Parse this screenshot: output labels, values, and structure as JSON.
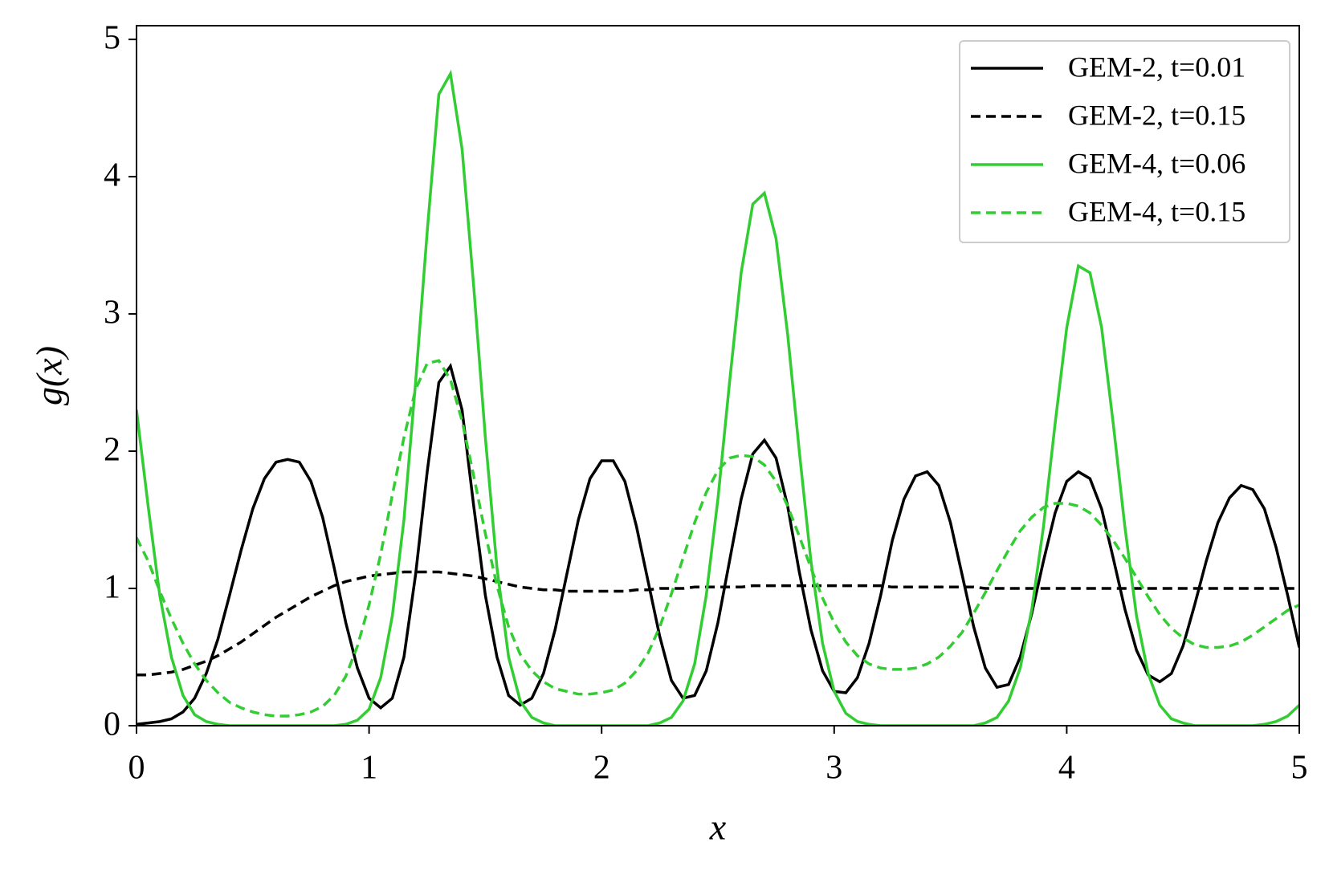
{
  "chart_data": {
    "type": "line",
    "xlabel": "x",
    "ylabel": "g(x)",
    "xlim": [
      0,
      5
    ],
    "ylim": [
      0,
      5.1
    ],
    "xticks": [
      0,
      1,
      2,
      3,
      4,
      5
    ],
    "yticks": [
      0,
      1,
      2,
      3,
      4,
      5
    ],
    "legend": "upper right",
    "x": [
      0,
      0.05,
      0.1,
      0.15,
      0.2,
      0.25,
      0.3,
      0.35,
      0.4,
      0.45,
      0.5,
      0.55,
      0.6,
      0.65,
      0.7,
      0.75,
      0.8,
      0.85,
      0.9,
      0.95,
      1,
      1.05,
      1.1,
      1.15,
      1.2,
      1.25,
      1.3,
      1.35,
      1.4,
      1.45,
      1.5,
      1.55,
      1.6,
      1.65,
      1.7,
      1.75,
      1.8,
      1.85,
      1.9,
      1.95,
      2,
      2.05,
      2.1,
      2.15,
      2.2,
      2.25,
      2.3,
      2.35,
      2.4,
      2.45,
      2.5,
      2.55,
      2.6,
      2.65,
      2.7,
      2.75,
      2.8,
      2.85,
      2.9,
      2.95,
      3,
      3.05,
      3.1,
      3.15,
      3.2,
      3.25,
      3.3,
      3.35,
      3.4,
      3.45,
      3.5,
      3.55,
      3.6,
      3.65,
      3.7,
      3.75,
      3.8,
      3.85,
      3.9,
      3.95,
      4,
      4.05,
      4.1,
      4.15,
      4.2,
      4.25,
      4.3,
      4.35,
      4.4,
      4.45,
      4.5,
      4.55,
      4.6,
      4.65,
      4.7,
      4.75,
      4.8,
      4.85,
      4.9,
      4.95,
      5
    ],
    "series": [
      {
        "name": "GEM-2, t=0.01",
        "color": "#000000",
        "dashed": false,
        "values": [
          0.01,
          0.02,
          0.03,
          0.05,
          0.1,
          0.2,
          0.38,
          0.63,
          0.95,
          1.28,
          1.58,
          1.8,
          1.92,
          1.94,
          1.92,
          1.78,
          1.52,
          1.15,
          0.75,
          0.42,
          0.2,
          0.13,
          0.2,
          0.5,
          1.1,
          1.85,
          2.5,
          2.62,
          2.3,
          1.6,
          0.95,
          0.5,
          0.22,
          0.15,
          0.2,
          0.38,
          0.7,
          1.1,
          1.5,
          1.8,
          1.93,
          1.93,
          1.78,
          1.45,
          1.05,
          0.65,
          0.33,
          0.2,
          0.22,
          0.4,
          0.75,
          1.2,
          1.65,
          1.98,
          2.08,
          1.95,
          1.6,
          1.12,
          0.7,
          0.4,
          0.25,
          0.24,
          0.35,
          0.6,
          0.95,
          1.35,
          1.65,
          1.82,
          1.85,
          1.75,
          1.48,
          1.1,
          0.72,
          0.42,
          0.28,
          0.3,
          0.5,
          0.82,
          1.2,
          1.55,
          1.78,
          1.85,
          1.8,
          1.58,
          1.22,
          0.85,
          0.55,
          0.37,
          0.32,
          0.38,
          0.58,
          0.88,
          1.2,
          1.48,
          1.66,
          1.75,
          1.72,
          1.58,
          1.3,
          0.95,
          0.57
        ]
      },
      {
        "name": "GEM-2, t=0.15",
        "color": "#000000",
        "dashed": true,
        "values": [
          0.37,
          0.37,
          0.38,
          0.39,
          0.41,
          0.44,
          0.47,
          0.51,
          0.56,
          0.61,
          0.67,
          0.73,
          0.79,
          0.84,
          0.89,
          0.94,
          0.98,
          1.02,
          1.05,
          1.07,
          1.09,
          1.1,
          1.11,
          1.12,
          1.12,
          1.12,
          1.12,
          1.11,
          1.1,
          1.09,
          1.07,
          1.05,
          1.03,
          1.01,
          1,
          0.99,
          0.99,
          0.98,
          0.98,
          0.98,
          0.98,
          0.98,
          0.98,
          0.99,
          0.99,
          1,
          1,
          1,
          1.01,
          1.01,
          1.01,
          1.01,
          1.01,
          1.02,
          1.02,
          1.02,
          1.02,
          1.02,
          1.02,
          1.02,
          1.02,
          1.02,
          1.02,
          1.02,
          1.02,
          1.01,
          1.01,
          1.01,
          1.01,
          1.01,
          1.01,
          1.01,
          1.01,
          1,
          1,
          1,
          1,
          1,
          1,
          1,
          1,
          1,
          1,
          1,
          1,
          1,
          1,
          1,
          1,
          1,
          1,
          1,
          1,
          1,
          1,
          1,
          1,
          1,
          1,
          1,
          1
        ]
      },
      {
        "name": "GEM-4, t=0.06",
        "color": "#32cd32",
        "dashed": false,
        "values": [
          2.3,
          1.6,
          0.95,
          0.5,
          0.22,
          0.08,
          0.03,
          0.01,
          0,
          0,
          0,
          0,
          0,
          0,
          0,
          0,
          0,
          0,
          0.01,
          0.04,
          0.12,
          0.35,
          0.8,
          1.5,
          2.5,
          3.6,
          4.6,
          4.75,
          4.2,
          3.2,
          2.1,
          1.15,
          0.5,
          0.18,
          0.06,
          0.02,
          0,
          0,
          0,
          0,
          0,
          0,
          0,
          0,
          0,
          0.02,
          0.06,
          0.18,
          0.45,
          0.95,
          1.65,
          2.5,
          3.3,
          3.8,
          3.88,
          3.55,
          2.85,
          2,
          1.2,
          0.6,
          0.25,
          0.09,
          0.03,
          0.01,
          0,
          0,
          0,
          0,
          0,
          0,
          0,
          0,
          0,
          0.02,
          0.06,
          0.18,
          0.42,
          0.85,
          1.45,
          2.2,
          2.9,
          3.35,
          3.3,
          2.9,
          2.2,
          1.45,
          0.8,
          0.38,
          0.15,
          0.05,
          0.02,
          0,
          0,
          0,
          0,
          0,
          0,
          0.01,
          0.03,
          0.07,
          0.15
        ]
      },
      {
        "name": "GEM-4, t=0.15",
        "color": "#32cd32",
        "dashed": true,
        "values": [
          1.37,
          1.2,
          0.98,
          0.78,
          0.6,
          0.45,
          0.33,
          0.24,
          0.17,
          0.13,
          0.1,
          0.08,
          0.07,
          0.07,
          0.08,
          0.1,
          0.14,
          0.22,
          0.36,
          0.58,
          0.88,
          1.25,
          1.68,
          2.1,
          2.45,
          2.64,
          2.66,
          2.52,
          2.22,
          1.82,
          1.4,
          1.02,
          0.72,
          0.52,
          0.4,
          0.32,
          0.27,
          0.25,
          0.23,
          0.23,
          0.24,
          0.26,
          0.31,
          0.4,
          0.53,
          0.72,
          0.96,
          1.22,
          1.48,
          1.7,
          1.86,
          1.95,
          1.97,
          1.96,
          1.9,
          1.78,
          1.6,
          1.38,
          1.15,
          0.93,
          0.75,
          0.61,
          0.51,
          0.45,
          0.42,
          0.41,
          0.41,
          0.42,
          0.45,
          0.5,
          0.58,
          0.68,
          0.82,
          0.97,
          1.13,
          1.28,
          1.42,
          1.52,
          1.59,
          1.62,
          1.62,
          1.6,
          1.55,
          1.46,
          1.35,
          1.22,
          1.08,
          0.94,
          0.81,
          0.71,
          0.64,
          0.59,
          0.57,
          0.57,
          0.58,
          0.61,
          0.66,
          0.72,
          0.78,
          0.84,
          0.88
        ]
      }
    ]
  }
}
